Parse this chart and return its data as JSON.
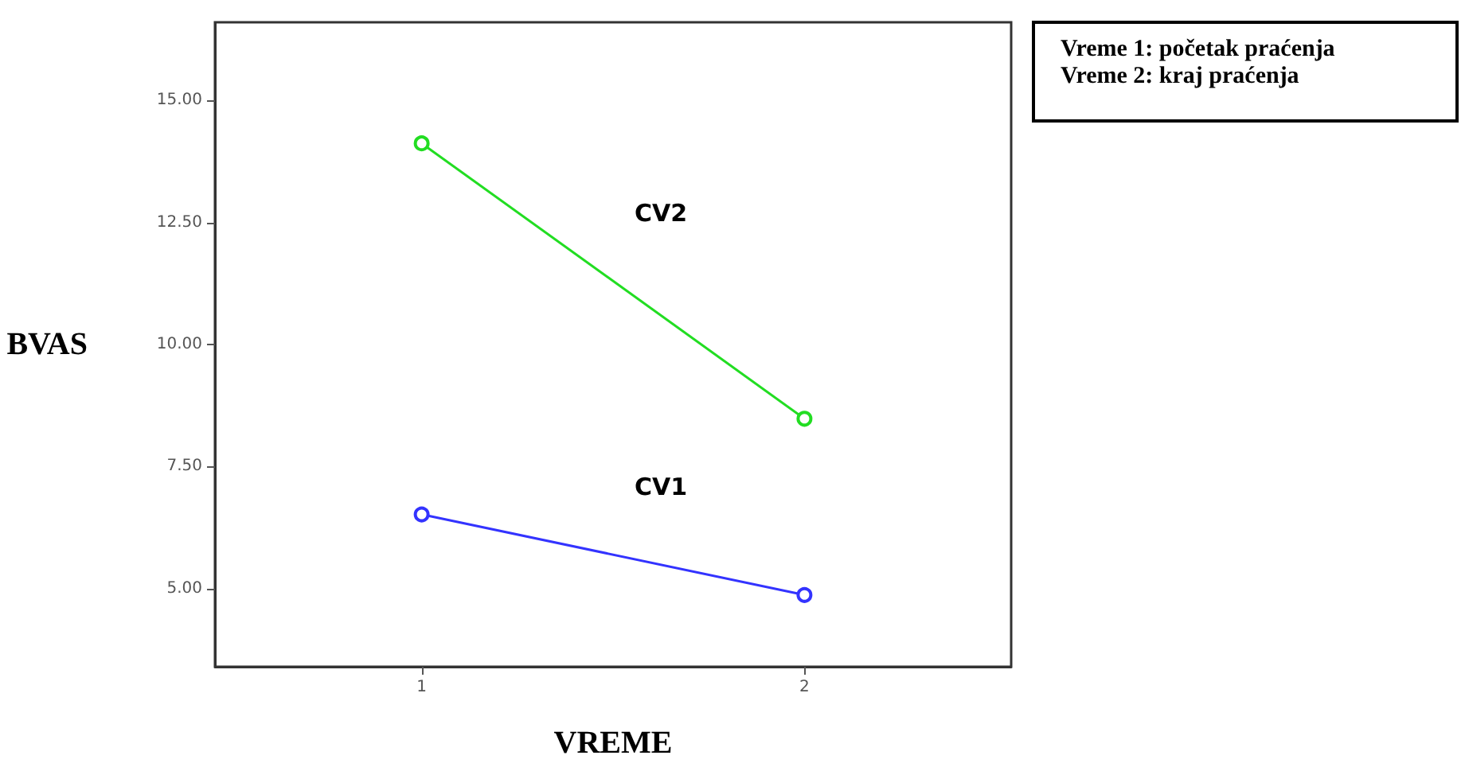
{
  "chart_data": {
    "type": "line",
    "xlabel": "VREME",
    "ylabel": "BVAS",
    "x": [
      1,
      2
    ],
    "xlim": [
      0.46,
      2.54
    ],
    "xticks": [
      1,
      2
    ],
    "ylim": [
      3.4,
      16.6
    ],
    "yticks": [
      {
        "value": 5,
        "label": "5.00"
      },
      {
        "value": 7.5,
        "label": "7.50"
      },
      {
        "value": 10,
        "label": "10.00"
      },
      {
        "value": 12.5,
        "label": "12.50"
      },
      {
        "value": 15,
        "label": "15.00"
      }
    ],
    "series": [
      {
        "name": "CV1",
        "color": "#3333ff",
        "values": [
          6.52,
          4.87
        ]
      },
      {
        "name": "CV2",
        "color": "#22dd22",
        "values": [
          14.12,
          8.48
        ]
      }
    ],
    "marker": "circle",
    "legend": false,
    "grid": false,
    "annotations": [
      "Vreme 1: početak praćenja\nVreme 2: kraj praćenja"
    ]
  }
}
